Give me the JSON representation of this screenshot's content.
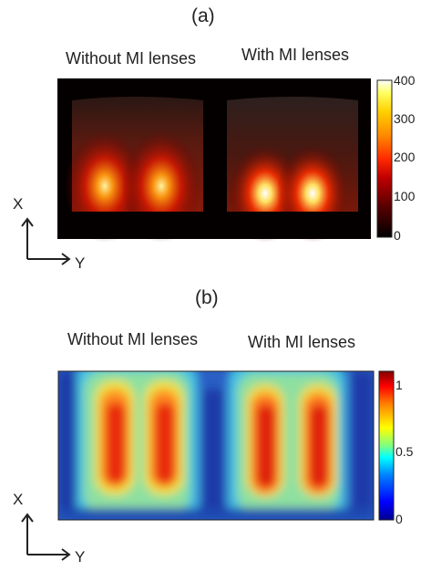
{
  "panel_a": {
    "label": "(a)",
    "left_title": "Without MI lenses",
    "right_title": "With MI lenses",
    "colorbar_ticks": [
      "400",
      "300",
      "200",
      "100",
      "0"
    ],
    "colormap": [
      "#000000",
      "#5a0000",
      "#c00000",
      "#ff2a00",
      "#ff8a00",
      "#ffd000",
      "#ffff60",
      "#ffffff"
    ],
    "axis_x": "X",
    "axis_y": "Y"
  },
  "panel_b": {
    "label": "(b)",
    "left_title": "Without MI lenses",
    "right_title": "With MI lenses",
    "colorbar_ticks": [
      "1",
      "0.5",
      "0"
    ],
    "colormap": [
      "#00008f",
      "#0000ff",
      "#0080ff",
      "#00ffff",
      "#80ff80",
      "#ffff00",
      "#ff8000",
      "#ff0000",
      "#800000"
    ],
    "axis_x": "X",
    "axis_y": "Y"
  }
}
